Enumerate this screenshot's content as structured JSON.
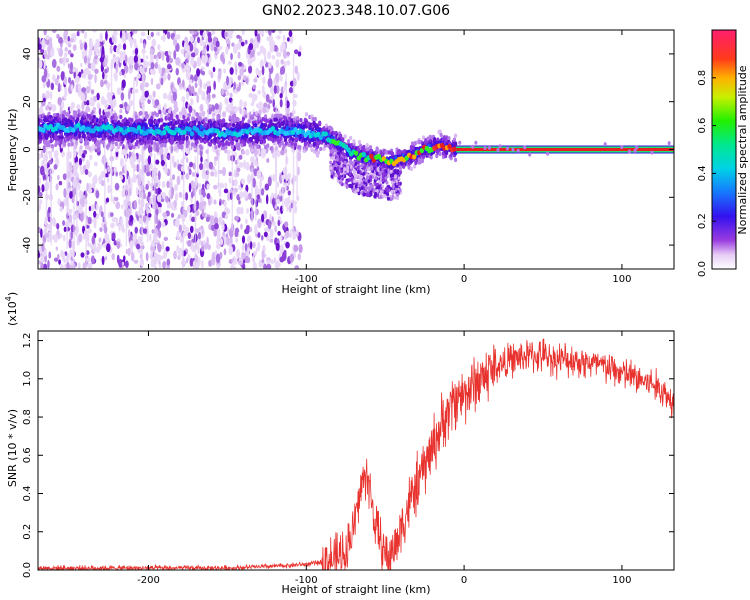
{
  "title": "GN02.2023.348.10.07.G06",
  "chart_data": [
    {
      "type": "heatmap",
      "name": "spectrogram",
      "xlabel": "Height of straight line (km)",
      "ylabel": "Frequency (Hz)",
      "xlim": [
        -270,
        133
      ],
      "ylim": [
        -50,
        50
      ],
      "x_ticks": [
        -200,
        -100,
        0,
        100
      ],
      "y_ticks": [
        -40,
        -20,
        0,
        20,
        40
      ],
      "ridge": [
        {
          "x": -265,
          "y": 9
        },
        {
          "x": -240,
          "y": 9
        },
        {
          "x": -210,
          "y": 8
        },
        {
          "x": -180,
          "y": 8
        },
        {
          "x": -150,
          "y": 7
        },
        {
          "x": -120,
          "y": 8
        },
        {
          "x": -100,
          "y": 7
        },
        {
          "x": -85,
          "y": 5
        },
        {
          "x": -75,
          "y": 0
        },
        {
          "x": -65,
          "y": -3
        },
        {
          "x": -55,
          "y": -4
        },
        {
          "x": -45,
          "y": -5
        },
        {
          "x": -35,
          "y": -3
        },
        {
          "x": -25,
          "y": 0
        },
        {
          "x": -15,
          "y": 2
        },
        {
          "x": -5,
          "y": 0
        },
        {
          "x": 133,
          "y": 0
        }
      ],
      "colorbar": {
        "label": "Normalized spectral amplitude",
        "range": [
          0,
          1
        ],
        "ticks": [
          "0.0",
          "0.2",
          "0.4",
          "0.6",
          "0.8"
        ]
      },
      "grid": false
    },
    {
      "type": "line",
      "name": "snr",
      "xlabel": "Height of straight line (km)",
      "ylabel": "SNR (10 * v/v)",
      "y_multiplier": "(x10",
      "y_multiplier_exp": "4",
      "y_multiplier_close": ")",
      "xlim": [
        -270,
        133
      ],
      "ylim": [
        0,
        1.25
      ],
      "x_ticks": [
        -200,
        -100,
        0,
        100
      ],
      "y_ticks": [
        "0.0",
        "0.2",
        "0.4",
        "0.6",
        "0.8",
        "1.0",
        "1.2"
      ],
      "series": [
        {
          "color": "#e8322e",
          "x": [
            -270,
            -250,
            -200,
            -150,
            -120,
            -100,
            -90,
            -80,
            -75,
            -70,
            -66,
            -62,
            -59,
            -56,
            -52,
            -48,
            -44,
            -40,
            -36,
            -32,
            -28,
            -24,
            -20,
            -15,
            -10,
            -5,
            0,
            10,
            20,
            30,
            40,
            50,
            60,
            70,
            80,
            90,
            100,
            110,
            120,
            125,
            130,
            133
          ],
          "y": [
            0.01,
            0.01,
            0.01,
            0.01,
            0.02,
            0.03,
            0.04,
            0.06,
            0.1,
            0.22,
            0.4,
            0.52,
            0.38,
            0.22,
            0.12,
            0.06,
            0.12,
            0.22,
            0.32,
            0.4,
            0.48,
            0.56,
            0.65,
            0.74,
            0.83,
            0.9,
            0.92,
            1.0,
            1.06,
            1.1,
            1.12,
            1.12,
            1.1,
            1.1,
            1.08,
            1.06,
            1.03,
            1.0,
            0.97,
            0.94,
            0.9,
            0.88
          ]
        }
      ],
      "grid": false
    }
  ]
}
